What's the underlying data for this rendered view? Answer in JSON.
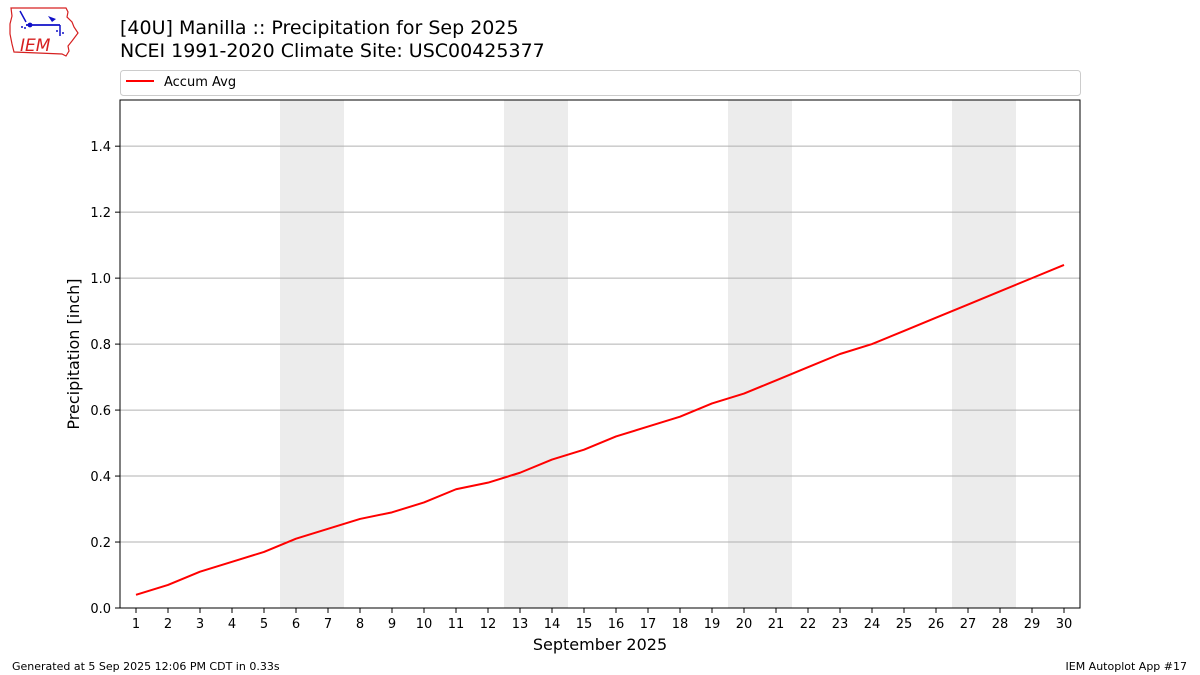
{
  "header": {
    "title_line1": "[40U] Manilla :: Precipitation for Sep 2025",
    "title_line2": "NCEI 1991-2020 Climate Site: USC00425377"
  },
  "logo": {
    "text": "IEM",
    "icon": "iowa-state-map-logo-icon"
  },
  "footer": {
    "generated": "Generated at 5 Sep 2025 12:06 PM CDT in 0.33s",
    "app": "IEM Autoplot App #17"
  },
  "colors": {
    "series": "#ff0000",
    "weekend_band": "#ececec",
    "grid": "#b0b0b0",
    "logo_red": "#d62020",
    "logo_blue": "#1010c8"
  },
  "chart_data": {
    "type": "line",
    "xlabel": "September 2025",
    "ylabel": "Precipitation [inch]",
    "x": [
      1,
      2,
      3,
      4,
      5,
      6,
      7,
      8,
      9,
      10,
      11,
      12,
      13,
      14,
      15,
      16,
      17,
      18,
      19,
      20,
      21,
      22,
      23,
      24,
      25,
      26,
      27,
      28,
      29,
      30
    ],
    "series": [
      {
        "name": "Accum Avg",
        "color": "#ff0000",
        "values": [
          0.04,
          0.07,
          0.11,
          0.14,
          0.17,
          0.21,
          0.24,
          0.27,
          0.29,
          0.32,
          0.36,
          0.38,
          0.41,
          0.45,
          0.48,
          0.52,
          0.55,
          0.58,
          0.62,
          0.65,
          0.69,
          0.73,
          0.77,
          0.8,
          0.84,
          0.88,
          0.92,
          0.96,
          1.0,
          1.04
        ]
      }
    ],
    "xlim": [
      0.5,
      30.5
    ],
    "ylim": [
      0,
      1.54
    ],
    "yticks": [
      0.0,
      0.2,
      0.4,
      0.6,
      0.8,
      1.0,
      1.2,
      1.4
    ],
    "ytick_labels": [
      "0.0",
      "0.2",
      "0.4",
      "0.6",
      "0.8",
      "1.0",
      "1.2",
      "1.4"
    ],
    "xtick_labels": [
      "1",
      "2",
      "3",
      "4",
      "5",
      "6",
      "7",
      "8",
      "9",
      "10",
      "11",
      "12",
      "13",
      "14",
      "15",
      "16",
      "17",
      "18",
      "19",
      "20",
      "21",
      "22",
      "23",
      "24",
      "25",
      "26",
      "27",
      "28",
      "29",
      "30"
    ],
    "weekend_bands": [
      [
        6,
        7
      ],
      [
        13,
        14
      ],
      [
        20,
        21
      ],
      [
        27,
        28
      ]
    ],
    "grid": "horizontal",
    "legend": "top"
  }
}
